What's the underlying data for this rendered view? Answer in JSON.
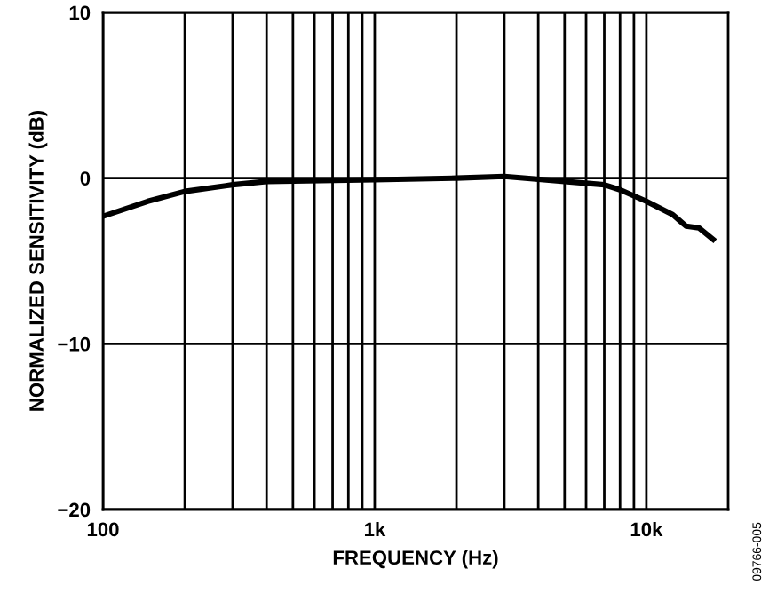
{
  "chart_data": {
    "type": "line",
    "xlabel": "FREQUENCY (Hz)",
    "ylabel": "NORMALIZED SENSITIVITY (dB)",
    "x": [
      100,
      146,
      200,
      300,
      400,
      1000,
      2000,
      3000,
      5000,
      7000,
      8000,
      10000,
      12500,
      14000,
      15600,
      17600
    ],
    "series": [
      {
        "color": "#000000",
        "values": [
          -2.3,
          -1.4,
          -0.8,
          -0.4,
          -0.2,
          -0.1,
          0,
          0.1,
          -0.2,
          -0.4,
          -0.7,
          -1.4,
          -2.2,
          -2.9,
          -3.0,
          -3.7
        ]
      }
    ],
    "log": "x",
    "xlim": [
      100,
      20000
    ],
    "xticks": [
      100,
      {
        "value": 200,
        "label": null
      },
      {
        "value": 300,
        "label": null
      },
      {
        "value": 400,
        "label": null
      },
      {
        "value": 500,
        "label": null
      },
      {
        "value": 600,
        "label": null
      },
      {
        "value": 700,
        "label": null
      },
      {
        "value": 800,
        "label": null
      },
      {
        "value": 900,
        "label": null
      },
      {
        "value": 1000,
        "label": "1k"
      },
      {
        "value": 2000,
        "label": null
      },
      {
        "value": 3000,
        "label": null
      },
      {
        "value": 4000,
        "label": null
      },
      {
        "value": 5000,
        "label": null
      },
      {
        "value": 6000,
        "label": null
      },
      {
        "value": 7000,
        "label": null
      },
      {
        "value": 8000,
        "label": null
      },
      {
        "value": 9000,
        "label": null
      },
      {
        "value": 10000,
        "label": "10k"
      }
    ],
    "ylim": [
      -20,
      10
    ],
    "yticks": [
      {
        "value": -20,
        "label": "−20"
      },
      {
        "value": -10,
        "label": "−10"
      },
      0,
      10
    ],
    "grid": true,
    "legend": false,
    "marker": "none",
    "line_style": "solid",
    "annotations": [
      "09766-005"
    ]
  }
}
